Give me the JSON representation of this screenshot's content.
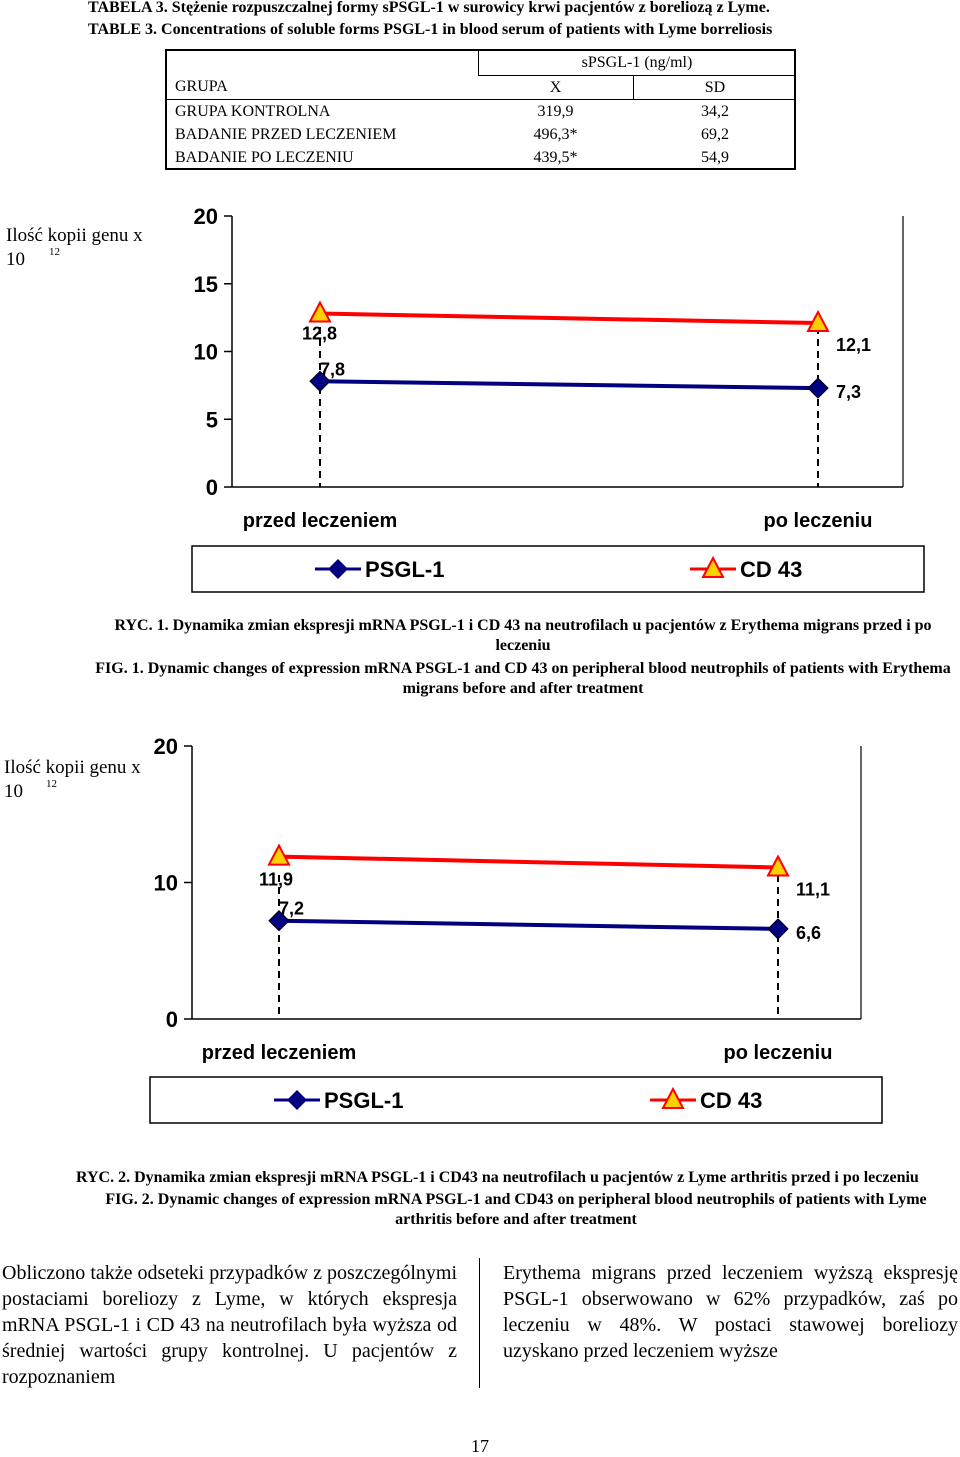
{
  "table": {
    "caption_pl": "TABELA 3. Stężenie rozpuszczalnej formy sPSGL-1 w surowicy krwi pacjentów z boreliozą z Lyme.",
    "caption_en": "TABLE 3. Concentrations of soluble forms PSGL-1 in blood serum of patients with Lyme borreliosis",
    "header_group": "sPSGL-1 (ng/ml)",
    "col_group": "GRUPA",
    "col_x": "X",
    "col_sd": "SD",
    "rows": [
      {
        "group": "GRUPA KONTROLNA",
        "x": "319,9",
        "sd": "34,2"
      },
      {
        "group": "BADANIE PRZED LECZENIEM",
        "x": "496,3*",
        "sd": "69,2"
      },
      {
        "group": "BADANIE PO LECZENIU",
        "x": "439,5*",
        "sd": "54,9"
      }
    ]
  },
  "chart_data": [
    {
      "type": "line",
      "ylabel": "Ilość kopii genu x 10",
      "ylabel_exp": "12",
      "categories": [
        "przed leczeniem",
        "po leczeniu"
      ],
      "yticks": [
        "20",
        "15",
        "10",
        "5",
        "0"
      ],
      "ylim": [
        0,
        20
      ],
      "series": [
        {
          "name": "PSGL-1",
          "values": [
            7.8,
            7.3
          ],
          "labels": [
            "7,8",
            "7,3"
          ],
          "color": "#000080",
          "marker": "diamond"
        },
        {
          "name": "CD 43",
          "values": [
            12.8,
            12.1
          ],
          "labels": [
            "12,8",
            "12,1"
          ],
          "color": "#ff0000",
          "marker": "triangle"
        }
      ],
      "legend": "bottom"
    },
    {
      "type": "line",
      "ylabel": "Ilość kopii genu x 10",
      "ylabel_exp": "12",
      "categories": [
        "przed leczeniem",
        "po leczeniu"
      ],
      "yticks": [
        "20",
        "10",
        "0"
      ],
      "ylim": [
        0,
        20
      ],
      "series": [
        {
          "name": "PSGL-1",
          "values": [
            7.2,
            6.6
          ],
          "labels": [
            "7,2",
            "6,6"
          ],
          "color": "#000080",
          "marker": "diamond"
        },
        {
          "name": "CD 43",
          "values": [
            11.9,
            11.1
          ],
          "labels": [
            "11,9",
            "11,1"
          ],
          "color": "#ff0000",
          "marker": "triangle"
        }
      ],
      "legend": "bottom"
    }
  ],
  "fig1": {
    "caption_pl": "RYC. 1. Dynamika zmian ekspresji mRNA PSGL-1 i CD 43 na neutrofilach u pacjentów z Erythema migrans przed i po leczeniu",
    "caption_en": "FIG. 1. Dynamic changes of expression mRNA PSGL-1 and CD 43 on peripheral blood neutrophils of patients with Erythema migrans before and after treatment"
  },
  "fig2": {
    "caption_pl": "RYC. 2. Dynamika zmian ekspresji mRNA PSGL-1 i CD43 na neutrofilach u pacjentów z Lyme arthritis przed i po leczeniu",
    "caption_en": "FIG. 2. Dynamic changes of expression mRNA PSGL-1 and CD43 on peripheral blood neutrophils of patients with Lyme arthritis before and after treatment"
  },
  "body": {
    "left": "Obliczono także odseteki przypadków z poszczególnymi postaciami boreliozy z Lyme, w których ekspresja mRNA PSGL-1 i CD 43 na neutrofilach była wyższa od średniej wartości grupy kontrolnej. U pacjentów z rozpoznaniem",
    "right": "Erythema migrans przed leczeniem wyższą ekspresję PSGL-1 obserwowano w 62% przypadków, zaś po leczeniu w 48%. W postaci stawowej boreliozy uzyskano przed leczeniem wyższe"
  },
  "page_number": "17"
}
